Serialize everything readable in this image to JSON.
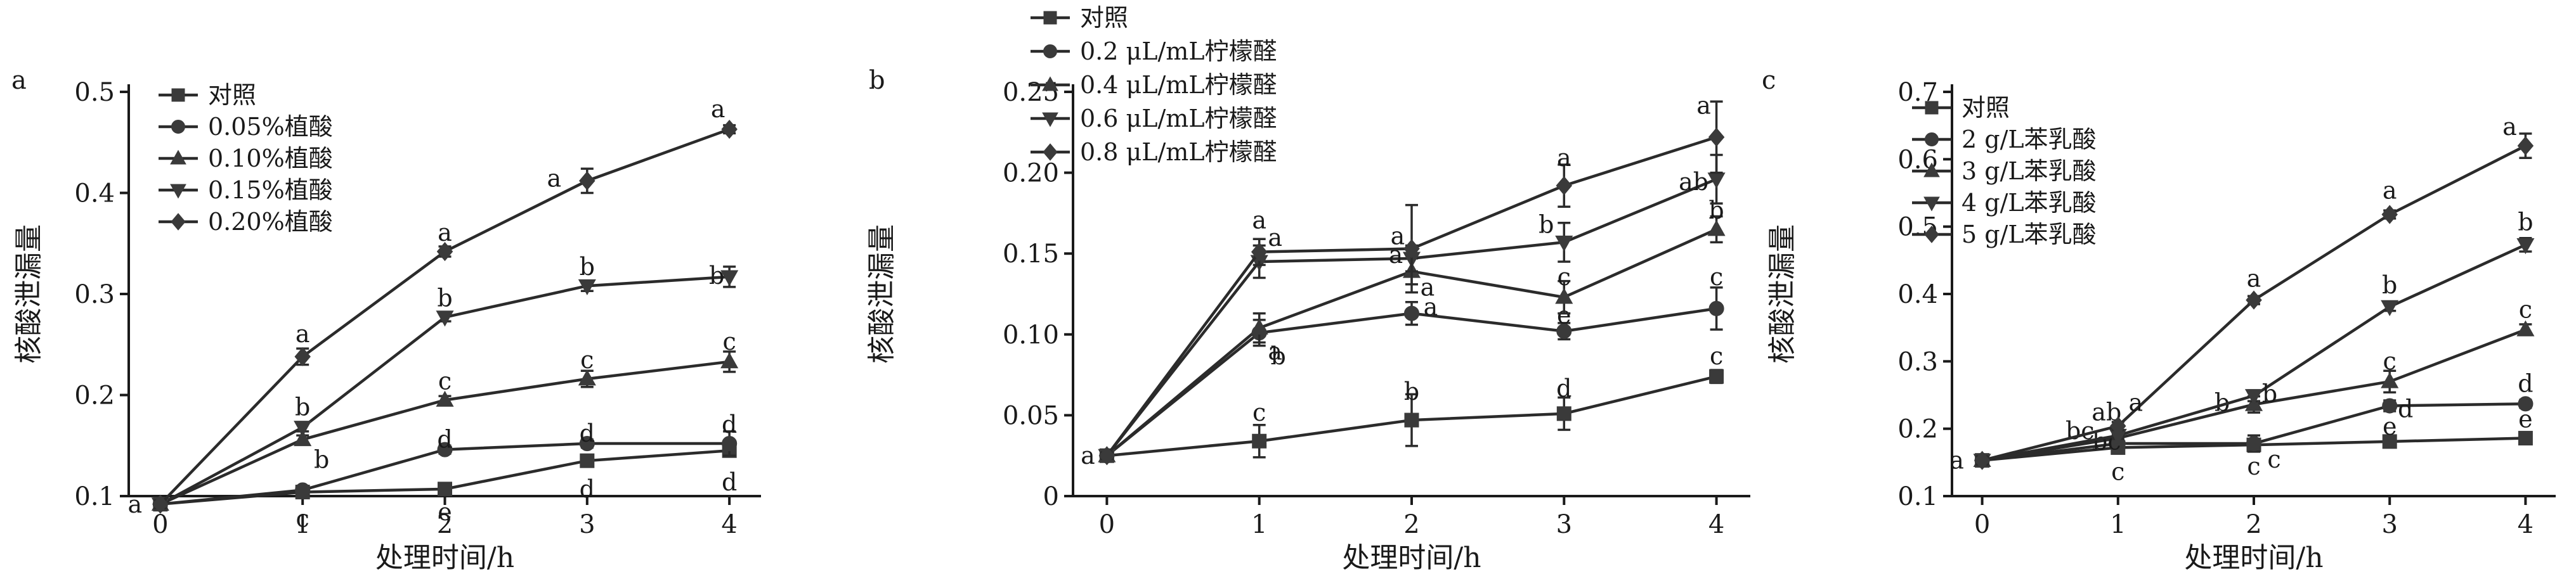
{
  "chart_data": [
    {
      "type": "line",
      "panel_label": "a",
      "ylabel": "核酸泄漏量",
      "xlabel": "处理时间/h",
      "x": [
        0,
        1,
        2,
        3,
        4
      ],
      "xticks": [
        "0",
        "1",
        "2",
        "3",
        "4"
      ],
      "ylim": [
        0.1,
        0.5
      ],
      "yticks": [
        "0.1",
        "0.2",
        "0.3",
        "0.4",
        "0.5"
      ],
      "legend_position": "top-left",
      "series": [
        {
          "name": "对照",
          "marker": "square",
          "values": [
            0.092,
            0.104,
            0.107,
            0.135,
            0.145
          ],
          "errors": [
            0.004,
            0.003,
            0.003,
            0.004,
            0.004
          ],
          "letters": [
            "a",
            "c",
            "e",
            "d",
            "d"
          ]
        },
        {
          "name": "0.05%植酸",
          "marker": "circle",
          "values": [
            0.092,
            0.106,
            0.146,
            0.152,
            0.152
          ],
          "errors": [
            0.004,
            0.004,
            0.004,
            0.004,
            0.012
          ],
          "letters": [
            "",
            "",
            "d",
            "d",
            "d"
          ]
        },
        {
          "name": "0.10%植酸",
          "marker": "triangle-up",
          "values": [
            0.092,
            0.156,
            0.195,
            0.216,
            0.233
          ],
          "errors": [
            0.004,
            0.004,
            0.004,
            0.008,
            0.01
          ],
          "letters": [
            "",
            "b",
            "c",
            "c",
            "c"
          ]
        },
        {
          "name": "0.15%植酸",
          "marker": "triangle-down",
          "values": [
            0.092,
            0.168,
            0.277,
            0.308,
            0.317
          ],
          "errors": [
            0.004,
            0.004,
            0.004,
            0.005,
            0.01
          ],
          "letters": [
            "",
            "b",
            "b",
            "b",
            "b"
          ]
        },
        {
          "name": "0.20%植酸",
          "marker": "diamond",
          "values": [
            0.092,
            0.238,
            0.342,
            0.412,
            0.463
          ],
          "errors": [
            0.004,
            0.008,
            0.005,
            0.012,
            0.004
          ],
          "letters": [
            "",
            "a",
            "a",
            "a",
            "a"
          ]
        }
      ]
    },
    {
      "type": "line",
      "panel_label": "b",
      "ylabel": "核酸泄漏量",
      "xlabel": "处理时间/h",
      "x": [
        0,
        1,
        2,
        3,
        4
      ],
      "xticks": [
        "0",
        "1",
        "2",
        "3",
        "4"
      ],
      "ylim": [
        0,
        0.25
      ],
      "yticks": [
        "0",
        "0.05",
        "0.10",
        "0.15",
        "0.20",
        "0.25"
      ],
      "legend_position": "top-left",
      "series": [
        {
          "name": "对照",
          "marker": "square",
          "values": [
            0.025,
            0.034,
            0.047,
            0.051,
            0.074
          ],
          "errors": [
            0.002,
            0.01,
            0.016,
            0.01,
            0.004
          ],
          "letters": [
            "a",
            "c",
            "b",
            "d",
            "c"
          ]
        },
        {
          "name": "0.2 μL/mL柠檬醛",
          "marker": "circle",
          "values": [
            0.025,
            0.101,
            0.113,
            0.102,
            0.116
          ],
          "errors": [
            0.002,
            0.008,
            0.007,
            0.005,
            0.013
          ],
          "letters": [
            "",
            "b",
            "a",
            "e",
            "c"
          ]
        },
        {
          "name": "0.4 μL/mL柠檬醛",
          "marker": "triangle-up",
          "values": [
            0.025,
            0.104,
            0.139,
            0.123,
            0.165
          ],
          "errors": [
            0.002,
            0.009,
            0.008,
            0.01,
            0.008
          ],
          "letters": [
            "",
            "a",
            "a",
            "c",
            "b"
          ]
        },
        {
          "name": "0.6 μL/mL柠檬醛",
          "marker": "triangle-down",
          "values": [
            0.025,
            0.145,
            0.147,
            0.157,
            0.196
          ],
          "errors": [
            0.002,
            0.01,
            0.008,
            0.012,
            0.015
          ],
          "letters": [
            "",
            "a",
            "a",
            "b",
            "ab"
          ]
        },
        {
          "name": "0.8 μL/mL柠檬醛",
          "marker": "diamond",
          "values": [
            0.025,
            0.151,
            0.153,
            0.192,
            0.222
          ],
          "errors": [
            0.002,
            0.008,
            0.027,
            0.013,
            0.022
          ],
          "letters": [
            "",
            "a",
            "a",
            "a",
            "a"
          ]
        }
      ]
    },
    {
      "type": "line",
      "panel_label": "c",
      "ylabel": "核酸泄漏量",
      "xlabel": "处理时间/h",
      "x": [
        0,
        1,
        2,
        3,
        4
      ],
      "xticks": [
        "0",
        "1",
        "2",
        "3",
        "4"
      ],
      "ylim": [
        0.1,
        0.7
      ],
      "yticks": [
        "0.1",
        "0.2",
        "0.3",
        "0.4",
        "0.5",
        "0.6",
        "0.7"
      ],
      "legend_position": "top-left",
      "series": [
        {
          "name": "对照",
          "marker": "square",
          "values": [
            0.153,
            0.172,
            0.176,
            0.181,
            0.186
          ],
          "errors": [
            0.006,
            0.005,
            0.006,
            0.005,
            0.004
          ],
          "letters": [
            "a",
            "c",
            "c",
            "e",
            "e"
          ]
        },
        {
          "name": "2 g/L苯乳酸",
          "marker": "circle",
          "values": [
            0.153,
            0.178,
            0.178,
            0.234,
            0.237
          ],
          "errors": [
            0.006,
            0.004,
            0.012,
            0.008,
            0.006
          ],
          "letters": [
            "",
            "bc",
            "c",
            "d",
            "d"
          ]
        },
        {
          "name": "3 g/L苯乳酸",
          "marker": "triangle-up",
          "values": [
            0.153,
            0.186,
            0.236,
            0.27,
            0.347
          ],
          "errors": [
            0.006,
            0.005,
            0.012,
            0.016,
            0.008
          ],
          "letters": [
            "",
            "bc",
            "b",
            "c",
            "c"
          ]
        },
        {
          "name": "4 g/L苯乳酸",
          "marker": "triangle-down",
          "values": [
            0.153,
            0.19,
            0.249,
            0.381,
            0.473
          ],
          "errors": [
            0.006,
            0.005,
            0.008,
            0.006,
            0.01
          ],
          "letters": [
            "",
            "ab",
            "b",
            "b",
            "b"
          ]
        },
        {
          "name": "5 g/L苯乳酸",
          "marker": "diamond",
          "values": [
            0.153,
            0.204,
            0.391,
            0.518,
            0.62
          ],
          "errors": [
            0.006,
            0.006,
            0.006,
            0.006,
            0.018
          ],
          "letters": [
            "",
            "a",
            "a",
            "a",
            "a"
          ]
        }
      ]
    }
  ]
}
